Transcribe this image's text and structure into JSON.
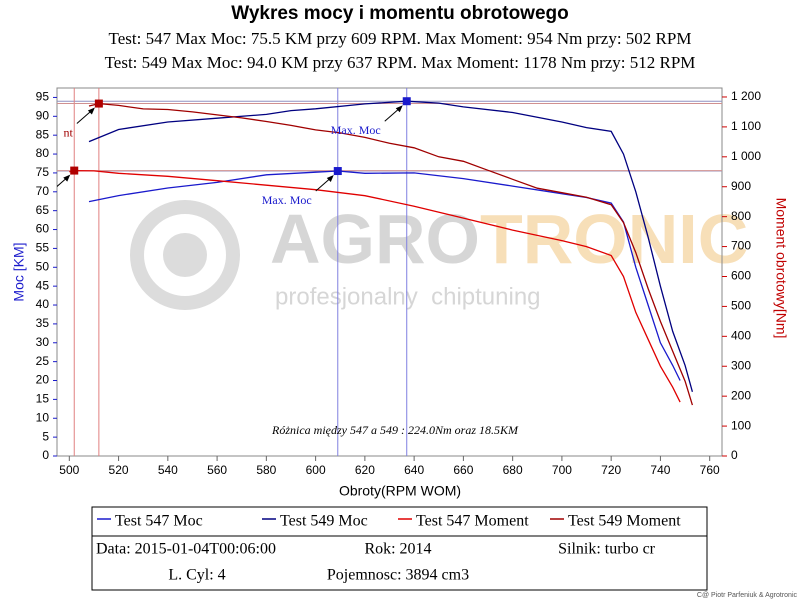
{
  "chart_data": {
    "type": "line",
    "title": "Wykres mocy i momentu obrotowego",
    "subtitles": [
      "Test: 547 Max Moc: 75.5 KM przy 609 RPM. Max Moment: 954 Nm przy: 502 RPM",
      "Test: 549 Max Moc: 94.0 KM przy 637 RPM. Max Moment: 1178 Nm przy: 512 RPM"
    ],
    "x_label": "Obroty(RPM WOM)",
    "y_label": "Moc [KM]",
    "y2_label": "Moment obrotowy[Nm]",
    "xlim": [
      495,
      765
    ],
    "xticks": [
      500,
      520,
      540,
      560,
      580,
      600,
      620,
      640,
      660,
      680,
      700,
      720,
      740,
      760
    ],
    "ylim": [
      0,
      97.5
    ],
    "yticks": [
      0,
      5,
      10,
      15,
      20,
      25,
      30,
      35,
      40,
      45,
      50,
      55,
      60,
      65,
      70,
      75,
      80,
      85,
      90,
      95
    ],
    "y2lim": [
      0,
      1230
    ],
    "y2ticks": [
      0,
      100,
      200,
      300,
      400,
      500,
      600,
      700,
      800,
      900,
      {
        "value": 1000,
        "label": "1 000"
      },
      {
        "value": 1100,
        "label": "1 100"
      },
      {
        "value": 1200,
        "label": "1 200"
      }
    ],
    "series": [
      {
        "name": "Test 547 Moc",
        "color": "#1a1acc",
        "axis": "y",
        "x": [
          508,
          520,
          540,
          560,
          580,
          600,
          609,
          620,
          640,
          660,
          680,
          700,
          710,
          720,
          725,
          730,
          735,
          740,
          745,
          748
        ],
        "values": [
          67.4,
          69,
          71,
          72.5,
          74.5,
          75.2,
          75.5,
          74.9,
          75,
          73.5,
          71.5,
          69.5,
          68.5,
          67,
          62,
          50,
          40,
          30,
          24,
          20
        ]
      },
      {
        "name": "Test 549 Moc",
        "color": "#000080",
        "axis": "y",
        "x": [
          508,
          520,
          540,
          560,
          580,
          590,
          600,
          620,
          637,
          650,
          660,
          680,
          700,
          710,
          720,
          725,
          730,
          735,
          740,
          745,
          750,
          753
        ],
        "values": [
          83.3,
          86.5,
          88.5,
          89.5,
          90.5,
          91.5,
          92,
          93.3,
          94,
          93.5,
          92.5,
          91,
          88.5,
          87,
          86,
          80,
          70,
          58,
          45,
          33,
          24,
          17
        ]
      },
      {
        "name": "Test 547 Moment",
        "color": "#e00000",
        "axis": "y2",
        "x": [
          500,
          502,
          510,
          520,
          540,
          560,
          580,
          600,
          620,
          640,
          660,
          680,
          700,
          710,
          720,
          725,
          730,
          735,
          740,
          745,
          748
        ],
        "values": [
          950,
          954,
          953,
          945,
          935,
          920,
          905,
          890,
          870,
          835,
          795,
          755,
          720,
          700,
          670,
          600,
          480,
          390,
          300,
          230,
          180
        ]
      },
      {
        "name": "Test 549 Moment",
        "color": "#a00000",
        "axis": "y2",
        "x": [
          508,
          512,
          520,
          530,
          540,
          550,
          560,
          570,
          580,
          590,
          600,
          610,
          620,
          630,
          640,
          650,
          660,
          670,
          680,
          690,
          700,
          710,
          720,
          725,
          730,
          735,
          740,
          745,
          750,
          753
        ],
        "values": [
          1170,
          1178,
          1172,
          1160,
          1158,
          1150,
          1140,
          1130,
          1118,
          1105,
          1090,
          1080,
          1065,
          1045,
          1030,
          1000,
          985,
          955,
          925,
          895,
          880,
          865,
          840,
          780,
          680,
          560,
          450,
          350,
          250,
          170
        ]
      }
    ],
    "max_points": [
      {
        "x": 609,
        "y": 75.5,
        "axis": "y",
        "color": "#1a1acc",
        "label": "Max. Moc"
      },
      {
        "x": 637,
        "y": 94.0,
        "axis": "y",
        "color": "#1a1acc",
        "label": "Max. Moc"
      },
      {
        "x": 502,
        "y": 954,
        "axis": "y2",
        "color": "#b00000"
      },
      {
        "x": 512,
        "y": 1178,
        "axis": "y2",
        "color": "#b00000",
        "label": "nt"
      }
    ],
    "note": "Różnica między 547 a 549 : 224.0Nm oraz 18.5KM",
    "watermark": {
      "brand_a": "AGRO",
      "brand_b": "TRONIC",
      "tagline": "profesjonalny  chiptuning"
    },
    "info": [
      [
        "Data: 2015-01-04T00:06:00",
        "Rok: 2014",
        "Silnik: turbo cr"
      ],
      [
        "L. Cyl: 4",
        "Pojemnosc: 3894 cm3"
      ]
    ],
    "credit": "C@ Piotr Parfeniuk & Agrotronic"
  }
}
